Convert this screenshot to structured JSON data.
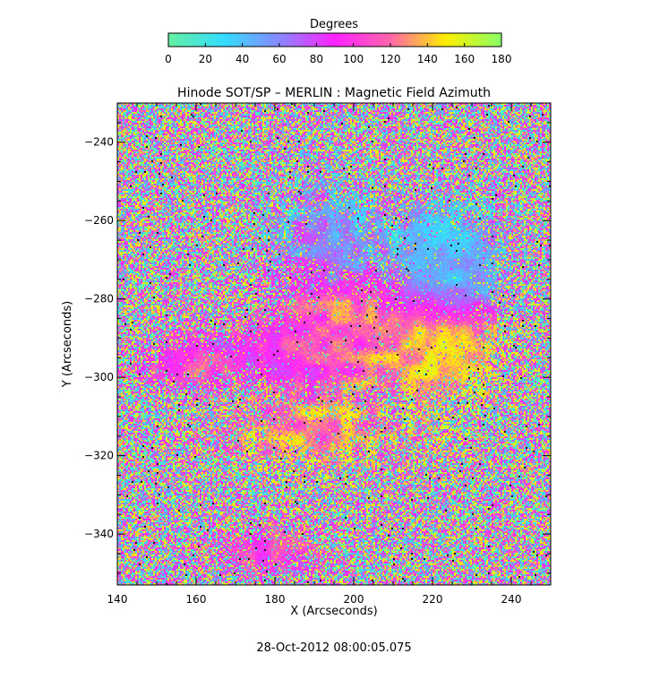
{
  "colorbar": {
    "title": "Degrees",
    "ticks": [
      "0",
      "20",
      "40",
      "60",
      "80",
      "100",
      "120",
      "140",
      "160",
      "180"
    ]
  },
  "chart_data": {
    "type": "heatmap",
    "title": "Hinode SOT/SP – MERLIN : Magnetic Field Azimuth",
    "xlabel": "X (Arcseconds)",
    "ylabel": "Y (Arcseconds)",
    "xlim": [
      140,
      250
    ],
    "ylim": [
      -353,
      -230
    ],
    "x_ticks": [
      140,
      160,
      180,
      200,
      220,
      240
    ],
    "y_ticks": [
      -240,
      -260,
      -280,
      -300,
      -320,
      -340
    ],
    "colorbar_range": [
      0,
      180
    ],
    "colorbar_unit": "Degrees",
    "colormap_stops": [
      {
        "value": 0,
        "color": "#66f0a0"
      },
      {
        "value": 30,
        "color": "#33ddff"
      },
      {
        "value": 60,
        "color": "#8888ff"
      },
      {
        "value": 90,
        "color": "#ff22ff"
      },
      {
        "value": 120,
        "color": "#ff66aa"
      },
      {
        "value": 150,
        "color": "#ffee00"
      },
      {
        "value": 180,
        "color": "#88ff66"
      }
    ],
    "date_label": "28-Oct-2012 08:00:05.075"
  }
}
